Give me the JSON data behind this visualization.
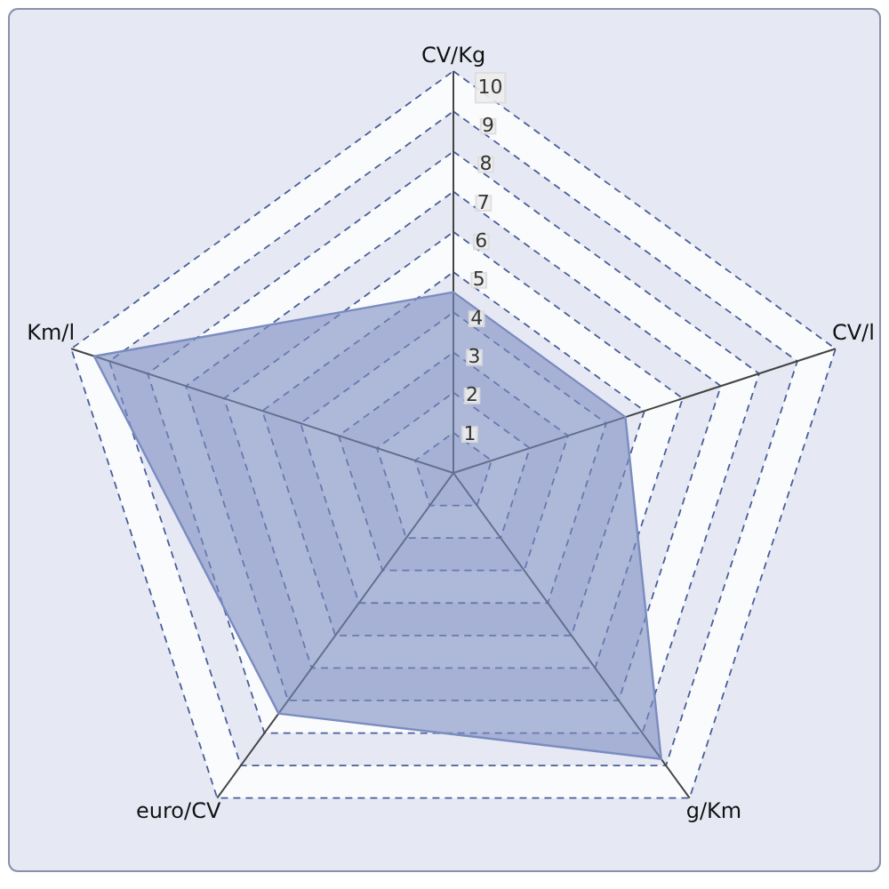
{
  "chart_data": {
    "type": "radar",
    "categories": [
      "CV/Kg",
      "CV/l",
      "g/Km",
      "euro/CV",
      "Km/l"
    ],
    "series": [
      {
        "color": "#7b8cc0",
        "values": [
          4.5,
          4.5,
          8.8,
          7.4,
          9.4
        ]
      }
    ],
    "ylim": [
      0,
      10
    ],
    "yticks": [
      1,
      2,
      3,
      4,
      5,
      6,
      7,
      8,
      9,
      10
    ],
    "grid": true
  }
}
